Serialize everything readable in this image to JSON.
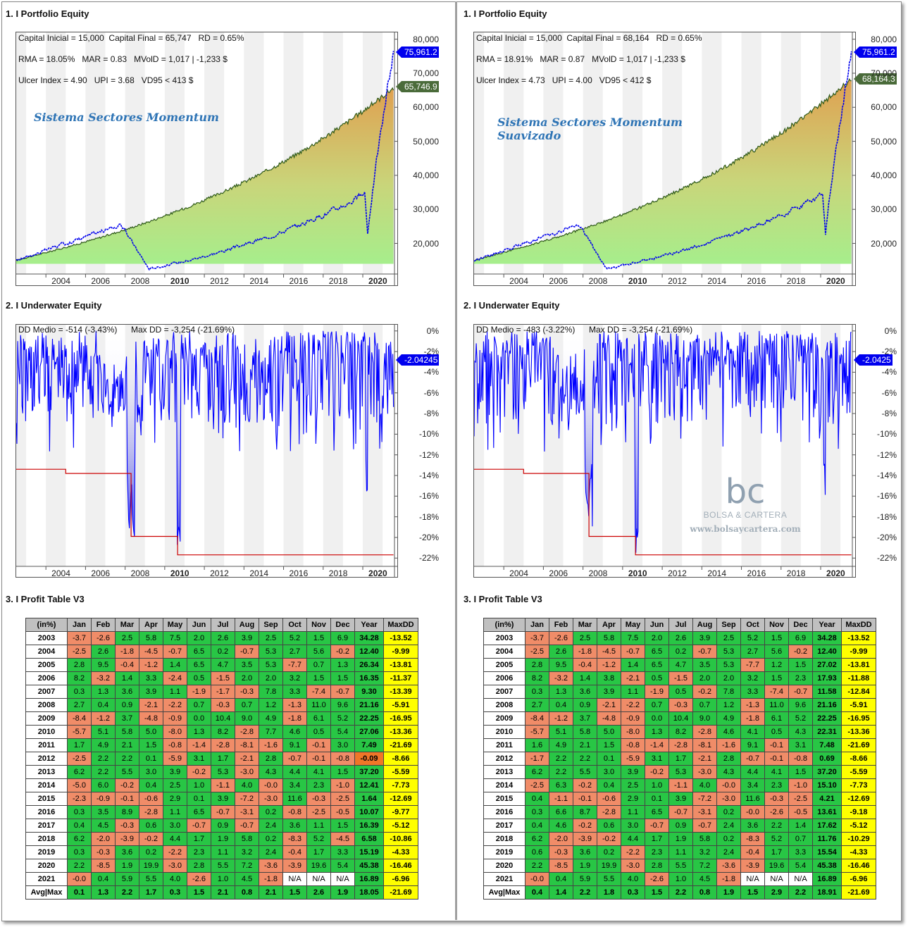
{
  "section_titles": {
    "equity": "1. I Portfolio Equity",
    "underwater": "2. I Underwater Equity",
    "profit": "3. I Profit Table V3"
  },
  "watermark": {
    "mark": "bc",
    "brand": "BOLSA & CARTERA",
    "url": "www.bolsaycartera.com"
  },
  "panels": [
    {
      "system_title": [
        "Sistema Sectores Momentum"
      ],
      "info": {
        "line1": "Capital Inicial = 15,000  Capital Final = 65,747   RD = 0.65%",
        "line2": "RMA = 18.05%   MAR = 0.83   MVolD = 1,017 | -1,233 $",
        "line3": "Ulcer Index = 4.90   UPI = 3.68   VD95 < 413 $"
      },
      "equity_tags": {
        "benchmark": "75,961.2",
        "system": "65,746.9"
      },
      "dd_info": {
        "mean": "DD Medio = -514 (-3.43%)",
        "max": "Max DD = -3,254 (-21.69%)"
      },
      "dd_tag": "-2.04245",
      "table": [
        [
          "2003",
          "-3.7",
          "-2.6",
          "2.5",
          "5.8",
          "7.5",
          "2.0",
          "2.6",
          "3.9",
          "2.5",
          "5.2",
          "1.5",
          "6.9",
          "34.28",
          "-13.52"
        ],
        [
          "2004",
          "-2.5",
          "2.6",
          "-1.8",
          "-4.5",
          "-0.7",
          "6.5",
          "0.2",
          "-0.7",
          "5.3",
          "2.7",
          "5.6",
          "-0.2",
          "12.40",
          "-9.99"
        ],
        [
          "2005",
          "2.8",
          "9.5",
          "-0.4",
          "-1.2",
          "1.4",
          "6.5",
          "4.7",
          "3.5",
          "5.3",
          "-7.7",
          "0.7",
          "1.3",
          "26.34",
          "-13.81"
        ],
        [
          "2006",
          "8.2",
          "-3.2",
          "1.4",
          "3.3",
          "-2.4",
          "0.5",
          "-1.5",
          "2.0",
          "2.0",
          "3.2",
          "1.5",
          "1.5",
          "16.35",
          "-11.37"
        ],
        [
          "2007",
          "0.3",
          "1.3",
          "3.6",
          "3.9",
          "1.1",
          "-1.9",
          "-1.7",
          "-0.3",
          "7.8",
          "3.3",
          "-7.4",
          "-0.7",
          "9.30",
          "-13.39"
        ],
        [
          "2008",
          "2.7",
          "0.4",
          "0.9",
          "-2.1",
          "-2.2",
          "0.7",
          "-0.3",
          "0.7",
          "1.2",
          "-1.3",
          "11.0",
          "9.6",
          "21.16",
          "-5.91"
        ],
        [
          "2009",
          "-8.4",
          "-1.2",
          "3.7",
          "-4.8",
          "-0.9",
          "0.0",
          "10.4",
          "9.0",
          "4.9",
          "-1.8",
          "6.1",
          "5.2",
          "22.25",
          "-16.95"
        ],
        [
          "2010",
          "-5.7",
          "5.1",
          "5.8",
          "5.0",
          "-8.0",
          "1.3",
          "8.2",
          "-2.8",
          "7.7",
          "4.6",
          "0.5",
          "5.4",
          "27.06",
          "-13.36"
        ],
        [
          "2011",
          "1.7",
          "4.9",
          "2.1",
          "1.5",
          "-0.8",
          "-1.4",
          "-2.8",
          "-8.1",
          "-1.6",
          "9.1",
          "-0.1",
          "3.0",
          "7.49",
          "-21.69"
        ],
        [
          "2012",
          "-2.5",
          "2.2",
          "2.2",
          "0.1",
          "-5.9",
          "3.1",
          "1.7",
          "-2.1",
          "2.8",
          "-0.7",
          "-0.1",
          "-0.8",
          "-0.09",
          "-8.66"
        ],
        [
          "2013",
          "6.2",
          "2.2",
          "5.5",
          "3.0",
          "3.9",
          "-0.2",
          "5.3",
          "-3.0",
          "4.3",
          "4.4",
          "4.1",
          "1.5",
          "37.20",
          "-5.59"
        ],
        [
          "2014",
          "-5.0",
          "6.0",
          "-0.2",
          "0.4",
          "2.5",
          "1.0",
          "-1.1",
          "4.0",
          "-0.0",
          "3.4",
          "2.3",
          "-1.0",
          "12.41",
          "-7.73"
        ],
        [
          "2015",
          "-2.3",
          "-0.9",
          "-0.1",
          "-0.6",
          "2.9",
          "0.1",
          "3.9",
          "-7.2",
          "-3.0",
          "11.6",
          "-0.3",
          "-2.5",
          "1.64",
          "-12.69"
        ],
        [
          "2016",
          "0.3",
          "3.5",
          "8.9",
          "-2.8",
          "1.1",
          "6.5",
          "-0.7",
          "-3.1",
          "0.2",
          "-0.8",
          "-2.5",
          "-0.5",
          "10.07",
          "-9.77"
        ],
        [
          "2017",
          "0.4",
          "4.5",
          "-0.3",
          "0.6",
          "3.0",
          "-0.7",
          "0.9",
          "-0.7",
          "2.4",
          "3.6",
          "1.1",
          "1.5",
          "16.39",
          "-5.12"
        ],
        [
          "2018",
          "6.2",
          "-2.0",
          "-3.9",
          "-0.2",
          "4.4",
          "1.7",
          "1.9",
          "5.8",
          "0.2",
          "-8.3",
          "5.2",
          "-4.5",
          "6.58",
          "-10.86"
        ],
        [
          "2019",
          "0.3",
          "-0.3",
          "3.6",
          "0.2",
          "-2.2",
          "2.3",
          "1.1",
          "3.2",
          "2.4",
          "-0.4",
          "1.7",
          "3.3",
          "15.19",
          "-4.33"
        ],
        [
          "2020",
          "2.2",
          "-8.5",
          "1.9",
          "19.9",
          "-3.0",
          "2.8",
          "5.5",
          "7.2",
          "-3.6",
          "-3.9",
          "19.6",
          "5.4",
          "45.38",
          "-16.46"
        ],
        [
          "2021",
          "-0.0",
          "0.4",
          "5.9",
          "5.5",
          "4.0",
          "-2.6",
          "1.0",
          "4.5",
          "-1.8",
          "N/A",
          "N/A",
          "N/A",
          "16.89",
          "-6.96"
        ]
      ],
      "avg_row": [
        "Avg|Max",
        "0.1",
        "1.3",
        "2.2",
        "1.7",
        "0.3",
        "1.5",
        "2.1",
        "0.8",
        "2.1",
        "1.5",
        "2.6",
        "1.9",
        "18.05",
        "-21.69"
      ],
      "final_value": 65747
    },
    {
      "system_title": [
        "Sistema Sectores Momentum",
        "Suavizado"
      ],
      "info": {
        "line1": "Capital Inicial = 15,000  Capital Final = 68,164   RD = 0.65%",
        "line2": "RMA = 18.91%   MAR = 0.87   MVolD = 1,017 | -1,233 $",
        "line3": "Ulcer Index = 4.73   UPI = 4.00   VD95 < 412 $"
      },
      "equity_tags": {
        "benchmark": "75,961.2",
        "system": "68,164.3"
      },
      "dd_info": {
        "mean": "DD Medio = -483 (-3.22%)",
        "max": "Max DD = -3,254 (-21.69%)"
      },
      "dd_tag": "-2.0425",
      "table": [
        [
          "2003",
          "-3.7",
          "-2.6",
          "2.5",
          "5.8",
          "7.5",
          "2.0",
          "2.6",
          "3.9",
          "2.5",
          "5.2",
          "1.5",
          "6.9",
          "34.28",
          "-13.52"
        ],
        [
          "2004",
          "-2.5",
          "2.6",
          "-1.8",
          "-4.5",
          "-0.7",
          "6.5",
          "0.2",
          "-0.7",
          "5.3",
          "2.7",
          "5.6",
          "-0.2",
          "12.40",
          "-9.99"
        ],
        [
          "2005",
          "2.8",
          "9.5",
          "-0.4",
          "-1.2",
          "1.4",
          "6.5",
          "4.7",
          "3.5",
          "5.3",
          "-7.7",
          "1.2",
          "1.5",
          "27.02",
          "-13.81"
        ],
        [
          "2006",
          "8.2",
          "-3.2",
          "1.4",
          "3.8",
          "-2.1",
          "0.5",
          "-1.5",
          "2.0",
          "2.0",
          "3.2",
          "1.5",
          "2.3",
          "17.93",
          "-11.88"
        ],
        [
          "2007",
          "0.3",
          "1.3",
          "3.6",
          "3.9",
          "1.1",
          "-1.9",
          "0.5",
          "-0.2",
          "7.8",
          "3.3",
          "-7.4",
          "-0.7",
          "11.58",
          "-12.84"
        ],
        [
          "2008",
          "2.7",
          "0.4",
          "0.9",
          "-2.1",
          "-2.2",
          "0.7",
          "-0.3",
          "0.7",
          "1.2",
          "-1.3",
          "11.0",
          "9.6",
          "21.16",
          "-5.91"
        ],
        [
          "2009",
          "-8.4",
          "-1.2",
          "3.7",
          "-4.8",
          "-0.9",
          "0.0",
          "10.4",
          "9.0",
          "4.9",
          "-1.8",
          "6.1",
          "5.2",
          "22.25",
          "-16.95"
        ],
        [
          "2010",
          "-5.7",
          "5.1",
          "5.8",
          "5.0",
          "-8.0",
          "1.3",
          "8.2",
          "-2.8",
          "4.6",
          "4.1",
          "0.5",
          "4.3",
          "22.31",
          "-13.36"
        ],
        [
          "2011",
          "1.6",
          "4.9",
          "2.1",
          "1.5",
          "-0.8",
          "-1.4",
          "-2.8",
          "-8.1",
          "-1.6",
          "9.1",
          "-0.1",
          "3.1",
          "7.48",
          "-21.69"
        ],
        [
          "2012",
          "-1.7",
          "2.2",
          "2.2",
          "0.1",
          "-5.9",
          "3.1",
          "1.7",
          "-2.1",
          "2.8",
          "-0.7",
          "-0.1",
          "-0.8",
          "0.69",
          "-8.66"
        ],
        [
          "2013",
          "6.2",
          "2.2",
          "5.5",
          "3.0",
          "3.9",
          "-0.2",
          "5.3",
          "-3.0",
          "4.3",
          "4.4",
          "4.1",
          "1.5",
          "37.20",
          "-5.59"
        ],
        [
          "2014",
          "-2.5",
          "6.3",
          "-0.2",
          "0.4",
          "2.5",
          "1.0",
          "-1.1",
          "4.0",
          "-0.0",
          "3.4",
          "2.3",
          "-1.0",
          "15.10",
          "-7.73"
        ],
        [
          "2015",
          "0.4",
          "-1.1",
          "-0.1",
          "-0.6",
          "2.9",
          "0.1",
          "3.9",
          "-7.2",
          "-3.0",
          "11.6",
          "-0.3",
          "-2.5",
          "4.21",
          "-12.69"
        ],
        [
          "2016",
          "0.3",
          "6.6",
          "8.7",
          "-2.8",
          "1.1",
          "6.5",
          "-0.7",
          "-3.1",
          "0.2",
          "-0.0",
          "-2.6",
          "-0.5",
          "13.61",
          "-9.18"
        ],
        [
          "2017",
          "0.4",
          "4.6",
          "-0.2",
          "0.6",
          "3.0",
          "-0.7",
          "0.9",
          "-0.7",
          "2.4",
          "3.6",
          "2.2",
          "1.4",
          "17.62",
          "-5.12"
        ],
        [
          "2018",
          "6.2",
          "-2.0",
          "-3.9",
          "-0.2",
          "4.4",
          "1.7",
          "1.9",
          "5.8",
          "0.2",
          "-8.3",
          "5.2",
          "0.7",
          "11.76",
          "-10.29"
        ],
        [
          "2019",
          "0.6",
          "-0.3",
          "3.6",
          "0.2",
          "-2.2",
          "2.3",
          "1.1",
          "3.2",
          "2.4",
          "-0.4",
          "1.7",
          "3.3",
          "15.54",
          "-4.33"
        ],
        [
          "2020",
          "2.2",
          "-8.5",
          "1.9",
          "19.9",
          "-3.0",
          "2.8",
          "5.5",
          "7.2",
          "-3.6",
          "-3.9",
          "19.6",
          "5.4",
          "45.38",
          "-16.46"
        ],
        [
          "2021",
          "-0.0",
          "0.4",
          "5.9",
          "5.5",
          "4.0",
          "-2.6",
          "1.0",
          "4.5",
          "-1.8",
          "N/A",
          "N/A",
          "N/A",
          "16.89",
          "-6.96"
        ]
      ],
      "avg_row": [
        "Avg|Max",
        "0.4",
        "1.4",
        "2.2",
        "1.8",
        "0.3",
        "1.5",
        "2.2",
        "0.8",
        "1.9",
        "1.5",
        "2.9",
        "2.2",
        "18.91",
        "-21.69"
      ],
      "final_value": 68164
    }
  ],
  "table_headers": [
    "(in%)",
    "Jan",
    "Feb",
    "Mar",
    "Apr",
    "May",
    "Jun",
    "Jul",
    "Aug",
    "Sep",
    "Oct",
    "Nov",
    "Dec",
    "Year",
    "MaxDD"
  ],
  "x_ticks": [
    "2004",
    "2006",
    "2008",
    "2010",
    "2012",
    "2014",
    "2016",
    "2018",
    "2020"
  ],
  "equity_y_ticks": [
    "80,000",
    "70,000",
    "60,000",
    "50,000",
    "40,000",
    "30,000",
    "20,000"
  ],
  "dd_y_ticks": [
    "0%",
    "-2%",
    "-4%",
    "-6%",
    "-8%",
    "-10%",
    "-12%",
    "-14%",
    "-16%",
    "-18%",
    "-20%",
    "-22%"
  ],
  "colors": {
    "equity_line": "#2f5a1a",
    "benchmark_line": "#0000ee",
    "dd_line": "#0000ff",
    "maxdd_line": "#cc0000",
    "tag_blue": "#0000ee",
    "tag_green": "#4a6b3a",
    "positive": "#28c645",
    "negative": "#f08c68",
    "year_col_warn": "#f07628",
    "maxdd_col": "#ffff00"
  },
  "chart_data": [
    {
      "type": "area",
      "title": "1. I Portfolio Equity",
      "x_range": [
        2002.5,
        2021.6
      ],
      "ylim": [
        11000,
        82000
      ],
      "series": [
        {
          "name": "",
          "x": [
            2002.5,
            2004,
            2006,
            2008,
            2010,
            2012,
            2014,
            2016,
            2018,
            2020,
            2021.5
          ],
          "values": [
            15000,
            20000,
            24000,
            31000,
            35000,
            41000,
            45000,
            48000,
            52000,
            56000,
            65747
          ]
        }
      ]
    },
    {
      "type": "line",
      "title": "2. I Underwater Equity",
      "x_range": [
        2002.5,
        2021.6
      ],
      "ylim": [
        -22.8,
        0.6
      ],
      "max_drawdown_pct": -21.69
    }
  ]
}
